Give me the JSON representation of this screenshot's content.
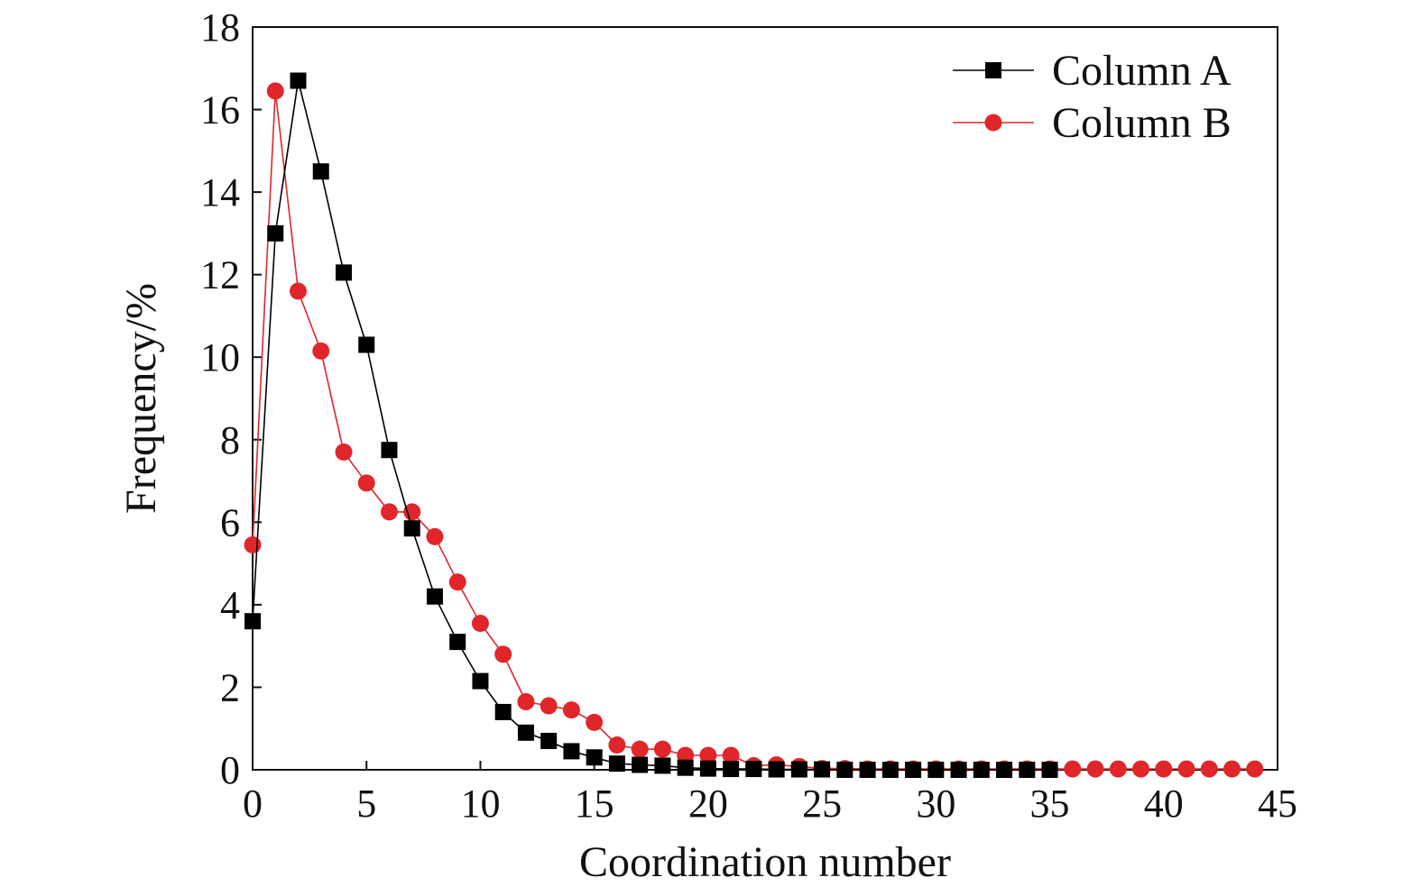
{
  "chart_data": {
    "type": "line",
    "title": "",
    "xlabel": "Coordination number",
    "ylabel": "Frequency/%",
    "xlim": [
      0,
      45
    ],
    "ylim": [
      0,
      18
    ],
    "xticks": [
      0,
      5,
      10,
      15,
      20,
      25,
      30,
      35,
      40,
      45
    ],
    "yticks": [
      0,
      2,
      4,
      6,
      8,
      10,
      12,
      14,
      16,
      18
    ],
    "grid": false,
    "legend_position": "top-right",
    "series": [
      {
        "name": "Column A",
        "color": "#000000",
        "marker": "square",
        "x": [
          0,
          1,
          2,
          3,
          4,
          5,
          6,
          7,
          8,
          9,
          10,
          11,
          12,
          13,
          14,
          15,
          16,
          17,
          18,
          19,
          20,
          21,
          22,
          23,
          24,
          25,
          26,
          27,
          28,
          29,
          30,
          31,
          32,
          33,
          34,
          35
        ],
        "y": [
          3.6,
          13.0,
          16.7,
          14.5,
          12.05,
          10.3,
          7.75,
          5.85,
          4.2,
          3.1,
          2.15,
          1.4,
          0.9,
          0.7,
          0.45,
          0.3,
          0.15,
          0.12,
          0.1,
          0.05,
          0.03,
          0.02,
          0.02,
          0.01,
          0.01,
          0.01,
          0,
          0,
          0,
          0,
          0,
          0,
          0,
          0,
          0,
          0
        ]
      },
      {
        "name": "Column B",
        "color": "#e0262b",
        "marker": "circle",
        "x": [
          0,
          1,
          2,
          3,
          4,
          5,
          6,
          7,
          8,
          9,
          10,
          11,
          12,
          13,
          14,
          15,
          16,
          17,
          18,
          19,
          20,
          21,
          22,
          23,
          24,
          25,
          26,
          27,
          28,
          29,
          30,
          31,
          32,
          33,
          34,
          35,
          36,
          37,
          38,
          39,
          40,
          41,
          42,
          43,
          44
        ],
        "y": [
          5.45,
          16.45,
          11.6,
          10.15,
          7.7,
          6.95,
          6.25,
          6.25,
          5.65,
          4.55,
          3.55,
          2.8,
          1.65,
          1.55,
          1.45,
          1.15,
          0.6,
          0.5,
          0.5,
          0.35,
          0.35,
          0.35,
          0.1,
          0.12,
          0.08,
          0.03,
          0.03,
          0.02,
          0.02,
          0.02,
          0.02,
          0.02,
          0.02,
          0.02,
          0.02,
          0.02,
          0.02,
          0.02,
          0.02,
          0.02,
          0.02,
          0.02,
          0.02,
          0.02,
          0.02
        ]
      }
    ]
  }
}
